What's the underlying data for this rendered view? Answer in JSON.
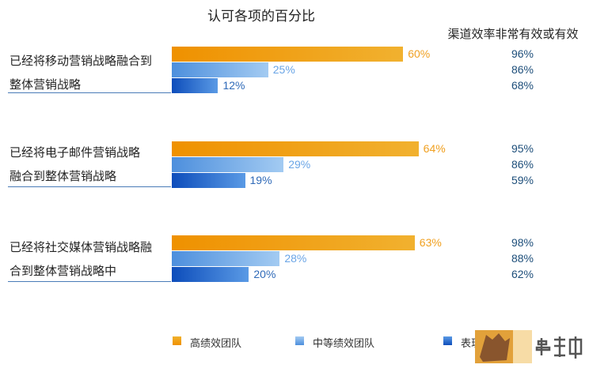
{
  "chart_title": "认可各项的百分比",
  "right_header": "渠道效率非常有效或有效",
  "chart_data": {
    "type": "bar",
    "orientation": "horizontal",
    "title": "认可各项的百分比",
    "categories": [
      "已经将移动营销战略融合到整体营销战略",
      "已经将电子邮件营销战略融合到整体营销战略",
      "已经将社交媒体营销战略融合到整体营销战略中"
    ],
    "category_lines": [
      [
        "已经将移动营销战略融合到",
        "整体营销战略"
      ],
      [
        "已经将电子邮件营销战略",
        "融合到整体营销战略"
      ],
      [
        "已经将社交媒体营销战略融",
        "合到整体营销战略中"
      ]
    ],
    "series": [
      {
        "name": "高绩效团队",
        "values": [
          60,
          64,
          63
        ],
        "labels": [
          "60%",
          "64%",
          "63%"
        ],
        "color": "#f0a020"
      },
      {
        "name": "中等绩效团队",
        "values": [
          25,
          29,
          28
        ],
        "labels": [
          "25%",
          "29%",
          "28%"
        ],
        "color": "#6aa5e6"
      },
      {
        "name": "表现",
        "values": [
          12,
          19,
          20
        ],
        "labels": [
          "12%",
          "19%",
          "20%"
        ],
        "color": "#2f6ab8"
      }
    ],
    "channel_efficiency": {
      "title": "渠道效率非常有效或有效",
      "values": [
        [
          "96%",
          "86%",
          "68%"
        ],
        [
          "95%",
          "86%",
          "59%"
        ],
        [
          "98%",
          "88%",
          "62%"
        ]
      ]
    },
    "xlim": [
      0,
      100
    ],
    "grid": false,
    "legend_position": "bottom"
  },
  "legend": [
    {
      "label": "高绩效团队",
      "key": "high"
    },
    {
      "label": "中等绩效团队",
      "key": "mid"
    },
    {
      "label": "表现",
      "key": "low"
    }
  ]
}
